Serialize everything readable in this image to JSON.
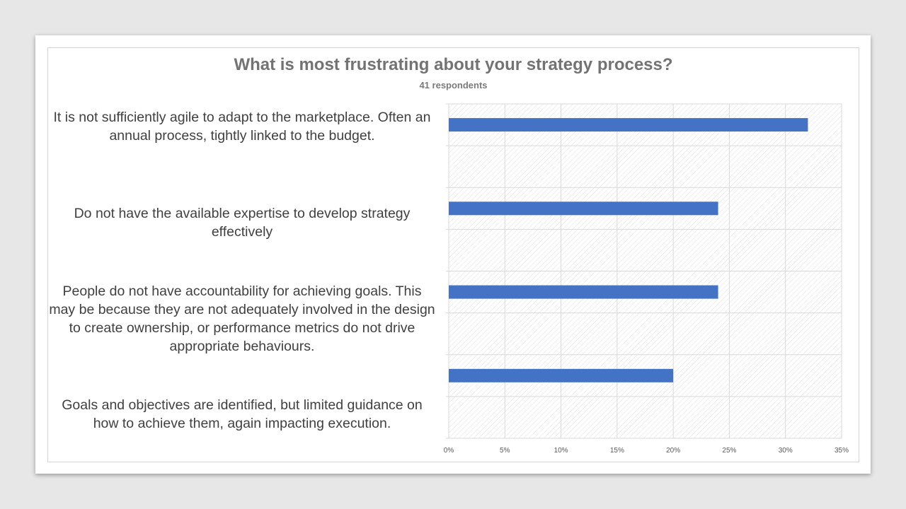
{
  "chart_data": {
    "type": "bar",
    "orientation": "horizontal",
    "title": "What is most frustrating about your strategy process?",
    "subtitle": "41 respondents",
    "categories": [
      "It is not sufficiently agile to adapt to the marketplace. Often an annual process, tightly linked to the budget.",
      "Do not have the available expertise to develop strategy effectively",
      "People do not have accountability for achieving goals. This may be because they are not adequately involved in the design to create ownership, or performance metrics do not drive appropriate behaviours.",
      "Goals and objectives are identified, but limited guidance on how to achieve them, again impacting execution."
    ],
    "values": [
      0.32,
      0.24,
      0.24,
      0.2
    ],
    "xlim": [
      0,
      0.35
    ],
    "x_ticks": [
      "0%",
      "5%",
      "10%",
      "15%",
      "20%",
      "25%",
      "30%",
      "35%"
    ],
    "bar_color": "#4472c4",
    "grid": true,
    "plot_background": "diagonal hatch"
  }
}
